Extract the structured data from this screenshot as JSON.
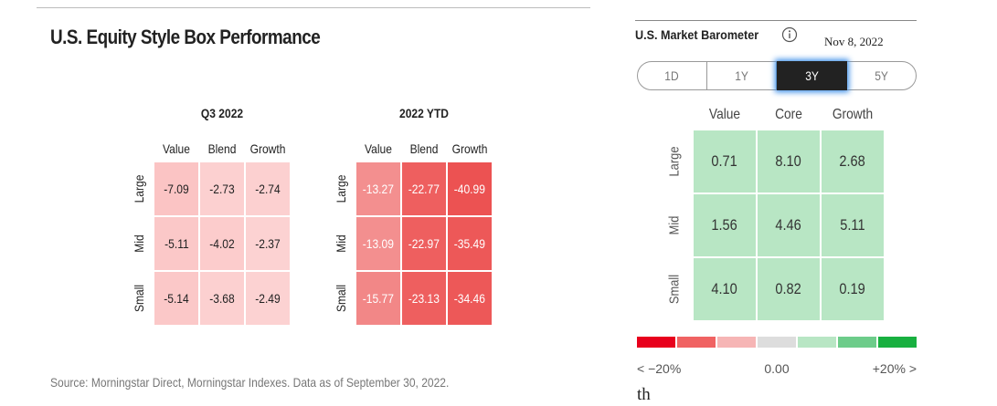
{
  "left": {
    "title": "U.S. Equity Style Box Performance",
    "grids": [
      {
        "title": "Q3 2022",
        "columns": [
          "Value",
          "Blend",
          "Growth"
        ],
        "rows": [
          "Large",
          "Mid",
          "Small"
        ],
        "cells": [
          [
            "-7.09",
            "-2.73",
            "-2.74"
          ],
          [
            "-5.11",
            "-4.02",
            "-2.37"
          ],
          [
            "-5.14",
            "-3.68",
            "-2.49"
          ]
        ],
        "colors": [
          [
            "#fbc4c4",
            "#fcd0d0",
            "#fcd0d0"
          ],
          [
            "#fbc8c8",
            "#fccccc",
            "#fcd2d2"
          ],
          [
            "#fbc8c8",
            "#fcd0d0",
            "#fcd2d2"
          ]
        ]
      },
      {
        "title": "2022 YTD",
        "columns": [
          "Value",
          "Blend",
          "Growth"
        ],
        "rows": [
          "Large",
          "Mid",
          "Small"
        ],
        "cells": [
          [
            "-13.27",
            "-22.77",
            "-40.99"
          ],
          [
            "-13.09",
            "-22.97",
            "-35.49"
          ],
          [
            "-15.77",
            "-23.13",
            "-34.46"
          ]
        ],
        "colors": [
          [
            "#f38f8f",
            "#ee5f5f",
            "#ec5252"
          ],
          [
            "#f38f8f",
            "#ee5f5f",
            "#ed5858"
          ],
          [
            "#f28787",
            "#ee5f5f",
            "#ed5858"
          ]
        ]
      }
    ],
    "source": "Source: Morningstar Direct, Morningstar Indexes. Data as of September 30, 2022."
  },
  "right": {
    "title": "U.S. Market Barometer",
    "date": "Nov 8, 2022",
    "tabs": [
      "1D",
      "1Y",
      "3Y",
      "5Y"
    ],
    "active_tab": 2,
    "columns": [
      "Value",
      "Core",
      "Growth"
    ],
    "rows": [
      "Large",
      "Mid",
      "Small"
    ],
    "cells": [
      [
        "0.71",
        "8.10",
        "2.68"
      ],
      [
        "1.56",
        "4.46",
        "5.11"
      ],
      [
        "4.10",
        "0.82",
        "0.19"
      ]
    ],
    "cell_color": "#b8e6c4",
    "scale_colors": [
      "#e8001c",
      "#f06262",
      "#f6b5b5",
      "#dddddd",
      "#b8e6c4",
      "#6dcc8a",
      "#18b040"
    ],
    "scale_labels": [
      "< −20%",
      "0.00",
      "+20% >"
    ],
    "footer_fragment": "th"
  }
}
